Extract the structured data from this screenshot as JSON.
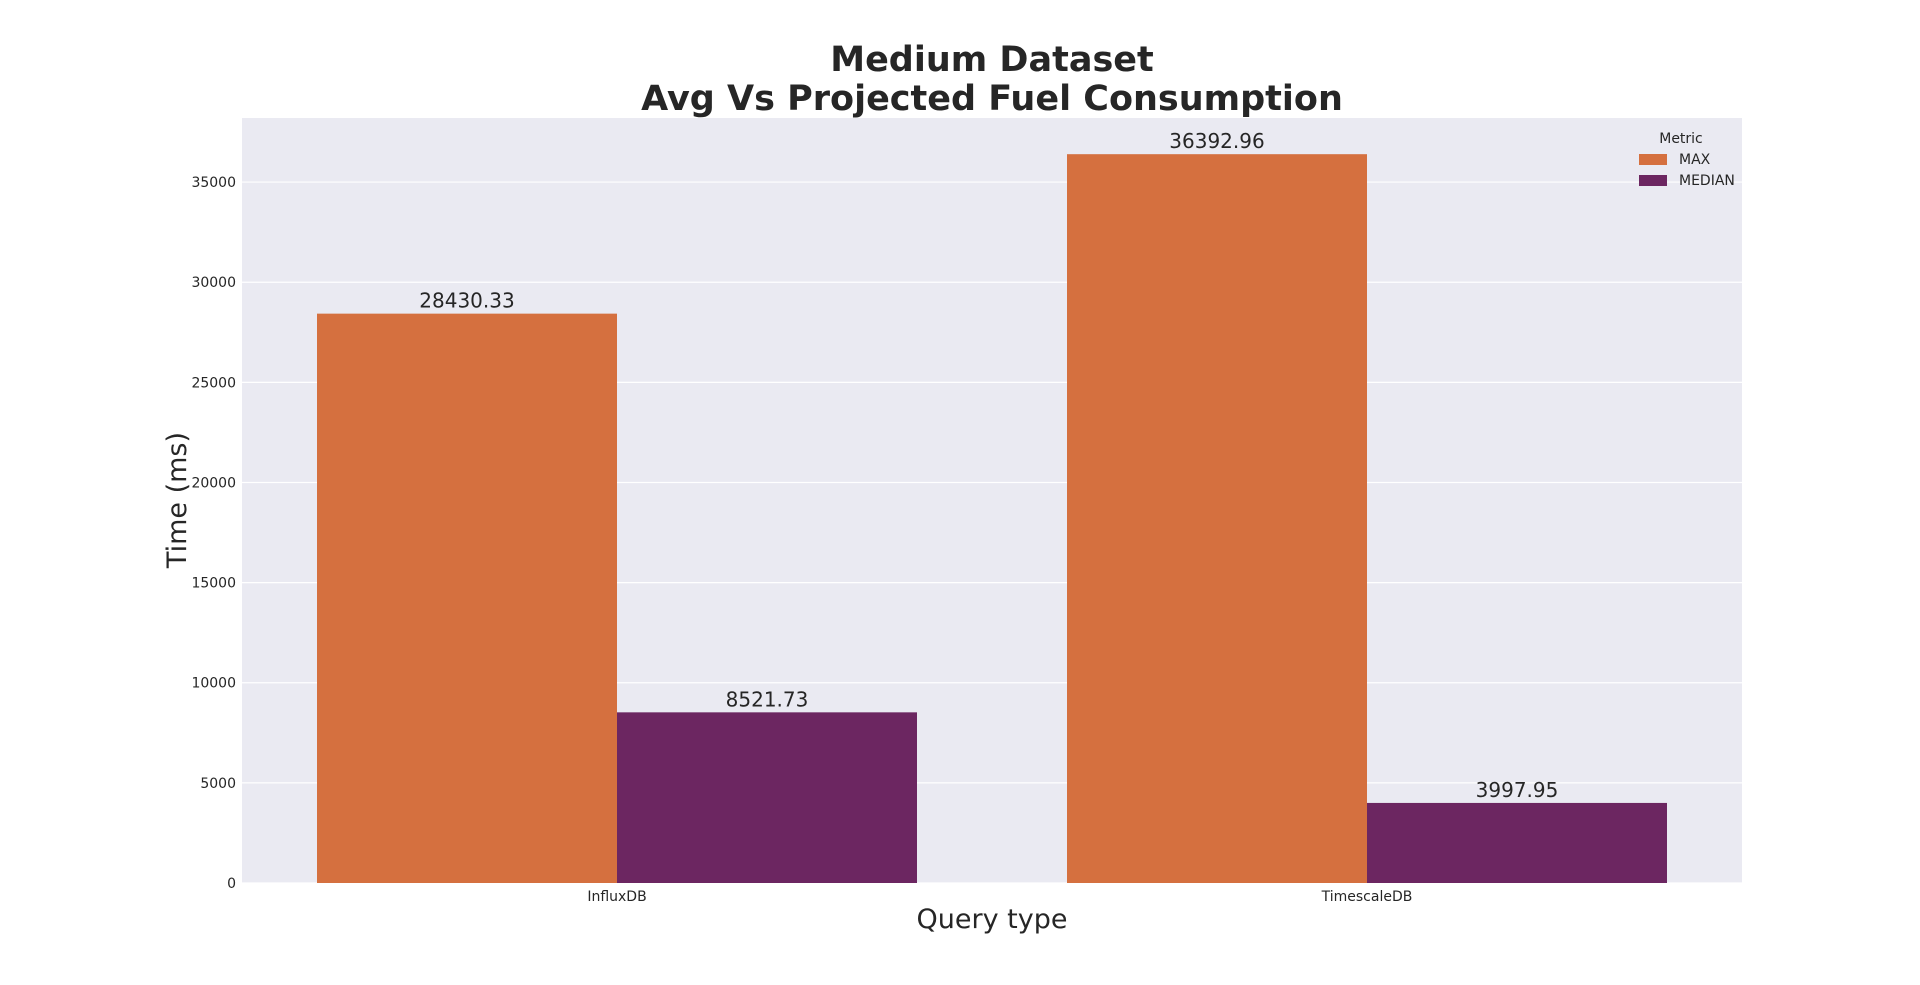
{
  "chart_data": {
    "type": "bar",
    "title": [
      "Medium Dataset",
      "Avg Vs Projected Fuel Consumption"
    ],
    "xlabel": "Query type",
    "ylabel": "Time (ms)",
    "categories": [
      "InfluxDB",
      "TimescaleDB"
    ],
    "series": [
      {
        "name": "MAX",
        "values": [
          28430.33,
          36392.96
        ],
        "labels": [
          "28430.33",
          "36392.96"
        ],
        "color": "#d5703f"
      },
      {
        "name": "MEDIAN",
        "values": [
          8521.73,
          3997.95
        ],
        "labels": [
          "8521.73",
          "3997.95"
        ],
        "color": "#6c2661"
      }
    ],
    "ylim": [
      0,
      38200
    ],
    "yticks": [
      0,
      5000,
      10000,
      15000,
      20000,
      25000,
      30000,
      35000
    ],
    "grid": true,
    "legend": {
      "title": "Metric",
      "position": "top-right"
    },
    "background_color": "#eaeaf2"
  }
}
